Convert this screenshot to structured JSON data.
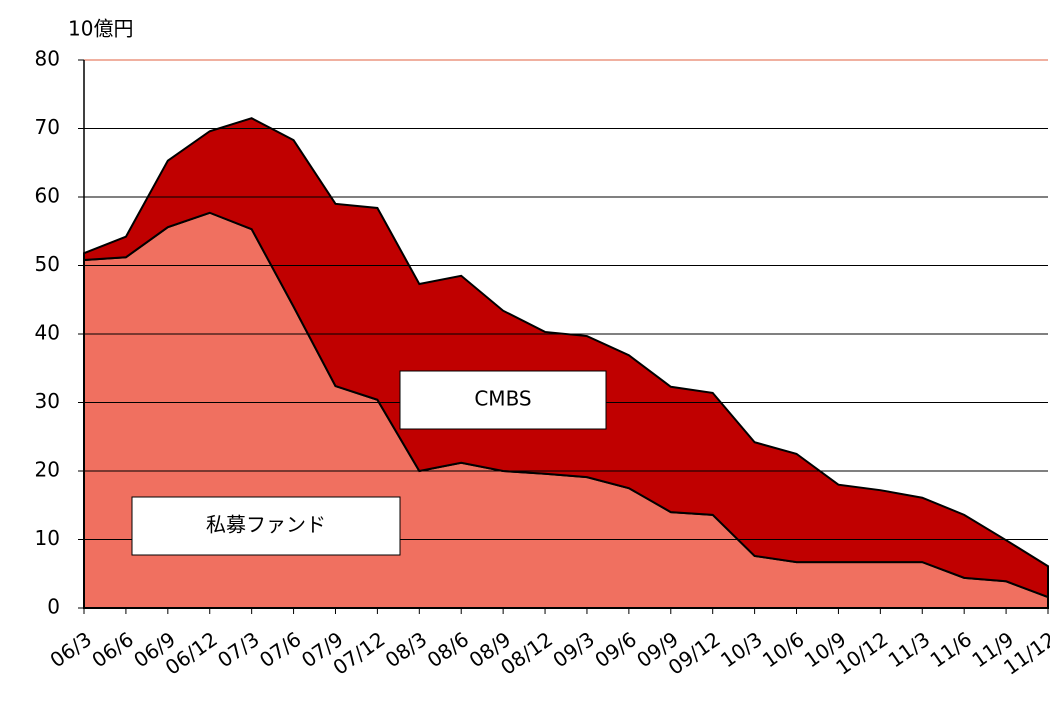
{
  "chart_data": {
    "type": "stacked-area",
    "y_axis_label": "10億円",
    "categories": [
      "06/3",
      "06/6",
      "06/9",
      "06/12",
      "07/3",
      "07/6",
      "07/9",
      "07/12",
      "08/3",
      "08/6",
      "08/9",
      "08/12",
      "09/3",
      "09/6",
      "09/9",
      "09/12",
      "10/3",
      "10/6",
      "10/9",
      "10/12",
      "11/3",
      "11/6",
      "11/9",
      "11/12"
    ],
    "series": [
      {
        "name": "私募ファンド",
        "color": "#f07060",
        "values": [
          50.8,
          51.2,
          55.6,
          57.7,
          55.3,
          44,
          32.4,
          30.4,
          20,
          21.2,
          20,
          19.6,
          19.1,
          17.5,
          14,
          13.6,
          7.6,
          6.7,
          6.7,
          6.7,
          6.7,
          4.4,
          3.9,
          1.6
        ]
      },
      {
        "name": "CMBS",
        "color": "#c00000",
        "values": [
          1.0,
          3.0,
          9.7,
          11.9,
          16.2,
          24.3,
          26.6,
          28.0,
          27.3,
          27.3,
          23.4,
          20.7,
          20.6,
          19.4,
          18.3,
          17.8,
          16.6,
          15.8,
          11.3,
          10.5,
          9.4,
          9.2,
          6.0,
          4.5
        ]
      }
    ],
    "ylim": [
      0,
      80
    ],
    "yticks": [
      0,
      10,
      20,
      30,
      40,
      50,
      60,
      70,
      80
    ],
    "grid": true
  }
}
